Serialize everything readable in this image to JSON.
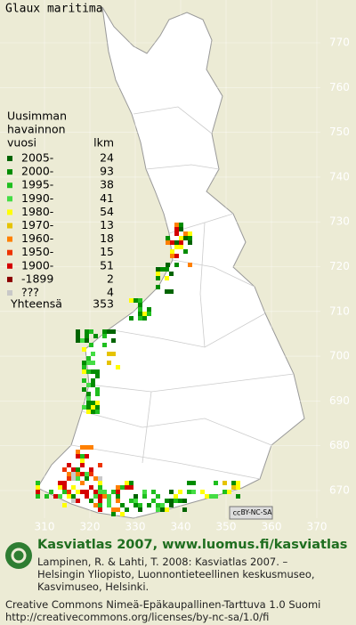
{
  "title": "Glaux maritima",
  "legend": {
    "heading": [
      "Uusimman",
      "havainnon",
      "vuosi"
    ],
    "count_heading": "lkm",
    "rows": [
      {
        "label": "2005-",
        "count": 24,
        "color": "#006400"
      },
      {
        "label": "2000-",
        "count": 93,
        "color": "#008c00"
      },
      {
        "label": "1995-",
        "count": 38,
        "color": "#1fbf1f"
      },
      {
        "label": "1990-",
        "count": 41,
        "color": "#44dd44"
      },
      {
        "label": "1980-",
        "count": 54,
        "color": "#ffff00"
      },
      {
        "label": "1970-",
        "count": 13,
        "color": "#e6c300"
      },
      {
        "label": "1960-",
        "count": 18,
        "color": "#ff8000"
      },
      {
        "label": "1950-",
        "count": 15,
        "color": "#ee3300"
      },
      {
        "label": "1900-",
        "count": 51,
        "color": "#d40000"
      },
      {
        "label": "-1899",
        "count": 2,
        "color": "#8b0000"
      },
      {
        "label": "???",
        "count": 4,
        "color": "#c8c8c8"
      }
    ],
    "total_label": "Yhteensä",
    "total": 353
  },
  "grid": {
    "northing": [
      770,
      760,
      750,
      740,
      730,
      720,
      710,
      700,
      690,
      680,
      670
    ],
    "easting": [
      310,
      320,
      330,
      340,
      350,
      360,
      370
    ]
  },
  "license_badge": {
    "icon": "cc",
    "text": "BY-NC-SA"
  },
  "footer": {
    "site": "Kasviatlas 2007, www.luomus.fi/kasviatlas",
    "citation": [
      "Lampinen, R. & Lahti, T. 2008: Kasviatlas 2007. –",
      "Helsingin Yliopisto, Luonnontieteellinen keskusmuseo,",
      "Kasvimuseo, Helsinki."
    ],
    "license": [
      "Creative Commons Nimeä-Epäkaupallinen-Tarttuva 1.0 Suomi",
      "http://creativecommons.org/licenses/by-nc-sa/1.0/fi"
    ]
  }
}
